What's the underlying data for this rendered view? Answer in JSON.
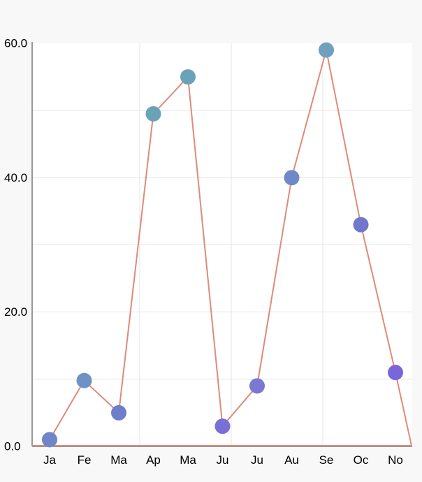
{
  "chart_data": {
    "type": "line",
    "title": "",
    "xlabel": "",
    "ylabel": "",
    "categories": [
      "Ja",
      "Fe",
      "Ma",
      "Ap",
      "Ma",
      "Ju",
      "Ju",
      "Au",
      "Se",
      "Oc",
      "No"
    ],
    "series": [
      {
        "values": [
          1.0,
          9.8,
          5.0,
          49.5,
          55.0,
          3.0,
          9.0,
          40.0,
          59.0,
          33.0,
          11.0
        ],
        "line_color": "#e08a7a",
        "point_colors": [
          "#6f86c8",
          "#6f92c6",
          "#6f7ecb",
          "#6aa3b8",
          "#6aa3b8",
          "#7a6fd6",
          "#7a78d3",
          "#6f88c8",
          "#6fa0c0",
          "#6f78cc",
          "#7a66db"
        ]
      }
    ],
    "ylim": [
      0,
      60
    ],
    "yticks": [
      "0.0",
      "20.0",
      "40.0",
      "60.0"
    ],
    "grid": true,
    "legend": "none"
  }
}
